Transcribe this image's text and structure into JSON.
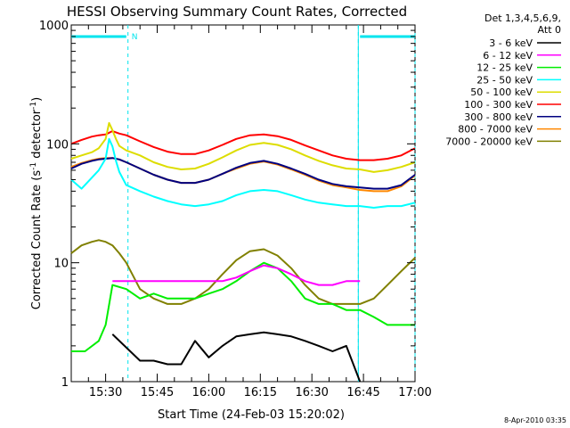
{
  "chart_data": {
    "type": "line",
    "title": "HESSI Observing Summary Count Rates, Corrected",
    "xlabel": "Start Time (24-Feb-03 15:20:02)",
    "ylabel_main": "Corrected Count Rate (s",
    "ylabel_sup1": "-1",
    "ylabel_mid": " detector",
    "ylabel_sup2": "-1",
    "ylabel_end": ")",
    "y_scale": "log",
    "ylim": [
      1,
      1000
    ],
    "xlim_minutes": [
      0,
      100
    ],
    "x_ticks": [
      {
        "m": 10,
        "label": "15:30"
      },
      {
        "m": 25,
        "label": "15:45"
      },
      {
        "m": 40,
        "label": "16:00"
      },
      {
        "m": 55,
        "label": "16:15"
      },
      {
        "m": 70,
        "label": "16:30"
      },
      {
        "m": 85,
        "label": "16:45"
      },
      {
        "m": 100,
        "label": "17:00"
      }
    ],
    "y_ticks": [
      {
        "v": 1,
        "label": "1"
      },
      {
        "v": 10,
        "label": "10"
      },
      {
        "v": 100,
        "label": "100"
      },
      {
        "v": 1000,
        "label": "1000"
      }
    ],
    "legend_header": [
      "Det 1,3,4,5,6,9,",
      "Att 0"
    ],
    "legend_placement": "right",
    "annotation_n": "N",
    "timestamp": "8-Apr-2010 03:35",
    "markers": {
      "night_dashed_minutes": [
        16.5,
        83.5,
        100
      ],
      "saa_solid_minutes": [
        83.5
      ],
      "night_bars": [
        [
          0,
          16
        ],
        [
          84,
          100
        ]
      ]
    },
    "series": [
      {
        "name": "3 - 6 keV",
        "color": "#000000",
        "x": [
          12,
          20,
          24,
          28,
          32,
          36,
          40,
          44,
          48,
          52,
          56,
          60,
          64,
          68,
          72,
          76,
          80,
          84
        ],
        "y": [
          2.5,
          1.5,
          1.5,
          1.4,
          1.4,
          2.2,
          1.6,
          2.0,
          2.4,
          2.5,
          2.6,
          2.5,
          2.4,
          2.2,
          2.0,
          1.8,
          2.0,
          1.0
        ]
      },
      {
        "name": "6 - 12 keV",
        "color": "#ff00ff",
        "x": [
          12,
          16,
          20,
          24,
          28,
          32,
          36,
          40,
          44,
          48,
          52,
          56,
          60,
          64,
          68,
          72,
          76,
          80,
          84
        ],
        "y": [
          7.0,
          7.0,
          7.0,
          7.0,
          7.0,
          7.0,
          7.0,
          7.0,
          7.0,
          7.5,
          8.5,
          9.5,
          9.0,
          8.0,
          7.0,
          6.5,
          6.5,
          7.0,
          7.0
        ]
      },
      {
        "name": "12 - 25 keV",
        "color": "#00ee00",
        "x": [
          0,
          4,
          8,
          10,
          12,
          16,
          20,
          24,
          28,
          32,
          36,
          40,
          44,
          48,
          52,
          56,
          60,
          64,
          68,
          72,
          76,
          80,
          84,
          88,
          92,
          96,
          100
        ],
        "y": [
          1.8,
          1.8,
          2.2,
          3.0,
          6.5,
          6.0,
          5.0,
          5.5,
          5.0,
          5.0,
          5.0,
          5.5,
          6.0,
          7.0,
          8.5,
          10.0,
          9.0,
          7.0,
          5.0,
          4.5,
          4.5,
          4.0,
          4.0,
          3.5,
          3.0,
          3.0,
          3.0
        ]
      },
      {
        "name": "25 - 50 keV",
        "color": "#00ffff",
        "x": [
          0,
          3,
          6,
          8,
          10,
          11,
          12,
          13,
          14,
          16,
          20,
          24,
          28,
          32,
          36,
          40,
          44,
          48,
          52,
          56,
          60,
          64,
          68,
          72,
          76,
          80,
          84,
          88,
          92,
          96,
          100
        ],
        "y": [
          50,
          42,
          52,
          60,
          75,
          110,
          95,
          72,
          58,
          45,
          40,
          36,
          33,
          31,
          30,
          31,
          33,
          37,
          40,
          41,
          40,
          37,
          34,
          32,
          31,
          30,
          30,
          29,
          30,
          30,
          32
        ]
      },
      {
        "name": "50 - 100 keV",
        "color": "#dddd00",
        "x": [
          0,
          3,
          6,
          8,
          10,
          11,
          12,
          13,
          14,
          16,
          20,
          24,
          28,
          32,
          36,
          40,
          44,
          48,
          52,
          56,
          60,
          64,
          68,
          72,
          76,
          80,
          84,
          88,
          92,
          96,
          100
        ],
        "y": [
          75,
          80,
          85,
          92,
          110,
          150,
          130,
          110,
          96,
          88,
          80,
          70,
          64,
          61,
          62,
          68,
          77,
          88,
          98,
          102,
          98,
          90,
          80,
          72,
          66,
          62,
          61,
          58,
          60,
          64,
          70
        ]
      },
      {
        "name": "100 - 300 keV",
        "color": "#ff0000",
        "x": [
          0,
          3,
          6,
          8,
          10,
          12,
          14,
          16,
          20,
          24,
          28,
          32,
          36,
          40,
          44,
          48,
          52,
          56,
          60,
          64,
          68,
          72,
          76,
          80,
          84,
          88,
          92,
          96,
          100
        ],
        "y": [
          100,
          108,
          115,
          118,
          120,
          128,
          122,
          118,
          105,
          94,
          86,
          82,
          82,
          88,
          98,
          110,
          118,
          120,
          116,
          108,
          97,
          88,
          80,
          75,
          73,
          73,
          75,
          80,
          92
        ]
      },
      {
        "name": "300 - 800 keV",
        "color": "#000080",
        "x": [
          0,
          3,
          6,
          8,
          10,
          12,
          14,
          16,
          20,
          24,
          28,
          32,
          36,
          40,
          44,
          48,
          52,
          56,
          60,
          64,
          68,
          72,
          76,
          80,
          84,
          88,
          92,
          96,
          100
        ],
        "y": [
          62,
          68,
          72,
          74,
          75,
          76,
          74,
          70,
          62,
          55,
          50,
          47,
          47,
          50,
          56,
          63,
          69,
          72,
          68,
          62,
          56,
          50,
          46,
          44,
          43,
          42,
          42,
          45,
          55
        ]
      },
      {
        "name": "800 - 7000 keV",
        "color": "#ff8800",
        "x": [
          0,
          3,
          6,
          8,
          10,
          12,
          14,
          16,
          20,
          24,
          28,
          32,
          36,
          40,
          44,
          48,
          52,
          56,
          60,
          64,
          68,
          72,
          76,
          80,
          84,
          88,
          92,
          96,
          100
        ],
        "y": [
          64,
          69,
          73,
          75,
          76,
          76,
          74,
          70,
          62,
          55,
          50,
          47,
          47,
          50,
          56,
          62,
          68,
          71,
          67,
          61,
          55,
          49,
          45,
          43,
          41,
          40,
          40,
          44,
          54
        ]
      },
      {
        "name": "7000 - 20000 keV",
        "color": "#808000",
        "x": [
          0,
          3,
          6,
          8,
          10,
          12,
          14,
          16,
          20,
          24,
          28,
          32,
          36,
          40,
          44,
          48,
          52,
          56,
          60,
          64,
          68,
          72,
          76,
          80,
          84,
          88,
          92,
          96,
          100
        ],
        "y": [
          12,
          14,
          15,
          15.5,
          15,
          14,
          12,
          10,
          6,
          5,
          4.5,
          4.5,
          5.0,
          6.0,
          8.0,
          10.5,
          12.5,
          13.0,
          11.5,
          9.0,
          6.5,
          5.0,
          4.5,
          4.5,
          4.5,
          5.0,
          6.5,
          8.5,
          11
        ]
      }
    ]
  }
}
